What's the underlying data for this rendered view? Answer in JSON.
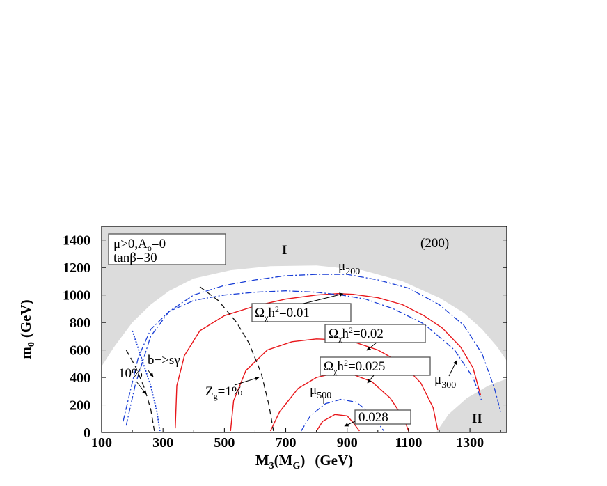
{
  "chart_data": {
    "type": "line",
    "xlabel": {
      "main": "M",
      "sub1": "3",
      "paren_open": "(M",
      "sub2": "G",
      "paren_close": ")",
      "unit": "(GeV)"
    },
    "ylabel": {
      "main": "m",
      "sub": "0",
      "unit": "(GeV)"
    },
    "xlim": [
      100,
      1420
    ],
    "ylim": [
      0,
      1500
    ],
    "x_ticks": [
      100,
      300,
      500,
      700,
      900,
      1100,
      1300
    ],
    "y_ticks": [
      0,
      200,
      400,
      600,
      800,
      1000,
      1200,
      1400
    ],
    "grid": false,
    "colors": {
      "relic": "#e8161a",
      "mu": "#1a3fd6",
      "zg": "#111111",
      "bsg": "#1a3fd6",
      "excluded": "#dcdcdc"
    },
    "excluded_regions": [
      {
        "name": "I",
        "boundary": [
          [
            100,
            480
          ],
          [
            140,
            620
          ],
          [
            200,
            800
          ],
          [
            260,
            930
          ],
          [
            320,
            1030
          ],
          [
            400,
            1120
          ],
          [
            520,
            1180
          ],
          [
            650,
            1210
          ],
          [
            800,
            1215
          ],
          [
            950,
            1180
          ],
          [
            1080,
            1100
          ],
          [
            1200,
            980
          ],
          [
            1280,
            870
          ],
          [
            1340,
            750
          ],
          [
            1390,
            620
          ],
          [
            1420,
            520
          ]
        ]
      },
      {
        "name": "II",
        "boundary": [
          [
            1190,
            0
          ],
          [
            1230,
            130
          ],
          [
            1290,
            250
          ],
          [
            1360,
            340
          ],
          [
            1420,
            390
          ]
        ]
      }
    ],
    "series": [
      {
        "name": "Ωχh²=0.01",
        "kind": "relic",
        "x": [
          340,
          345,
          370,
          420,
          500,
          600,
          700,
          800,
          870,
          920,
          1000,
          1080,
          1150,
          1210,
          1270,
          1310,
          1335
        ],
        "y": [
          30,
          340,
          560,
          740,
          850,
          920,
          970,
          1000,
          1010,
          1005,
          980,
          930,
          850,
          760,
          620,
          470,
          270
        ]
      },
      {
        "name": "Ωχh²=0.02",
        "kind": "relic",
        "x": [
          520,
          530,
          570,
          640,
          720,
          800,
          860,
          920,
          1000,
          1080,
          1140,
          1180,
          1195
        ],
        "y": [
          10,
          230,
          450,
          600,
          660,
          680,
          675,
          660,
          600,
          500,
          360,
          180,
          20
        ]
      },
      {
        "name": "Ωχh²=0.025",
        "kind": "relic",
        "x": [
          650,
          680,
          740,
          800,
          860,
          920,
          980,
          1040,
          1085,
          1100
        ],
        "y": [
          10,
          150,
          320,
          400,
          430,
          420,
          370,
          250,
          100,
          10
        ]
      },
      {
        "name": "0.028",
        "kind": "relic",
        "x": [
          800,
          820,
          860,
          900,
          920,
          940
        ],
        "y": [
          10,
          80,
          130,
          120,
          70,
          10
        ]
      },
      {
        "name": "μ200",
        "kind": "mu",
        "x": [
          180,
          210,
          260,
          320,
          400,
          500,
          600,
          700,
          800,
          900,
          1000,
          1100,
          1200,
          1280,
          1340,
          1380,
          1400
        ],
        "y": [
          50,
          350,
          700,
          880,
          1000,
          1070,
          1110,
          1140,
          1150,
          1150,
          1110,
          1050,
          930,
          780,
          570,
          320,
          150
        ]
      },
      {
        "name": "μ300",
        "kind": "mu",
        "x": [
          170,
          190,
          220,
          260,
          320,
          400,
          500,
          600,
          700,
          800,
          880,
          960,
          1050,
          1150,
          1250,
          1310,
          1340
        ],
        "y": [
          80,
          270,
          550,
          750,
          880,
          960,
          1000,
          1020,
          1030,
          1020,
          1000,
          970,
          900,
          790,
          600,
          400,
          220
        ]
      },
      {
        "name": "μ500",
        "kind": "mu",
        "x": [
          750,
          780,
          830,
          880,
          930,
          980,
          1010,
          1020
        ],
        "y": [
          10,
          120,
          210,
          240,
          220,
          130,
          40,
          10
        ]
      },
      {
        "name": "Zg=1%",
        "kind": "zg",
        "x": [
          420,
          480,
          540,
          580,
          620,
          645,
          660
        ],
        "y": [
          1060,
          960,
          800,
          650,
          430,
          200,
          10
        ]
      },
      {
        "name": "10%",
        "kind": "zg",
        "x": [
          180,
          210,
          240,
          260,
          272
        ],
        "y": [
          600,
          480,
          320,
          170,
          10
        ]
      },
      {
        "name": "b->sγ",
        "kind": "bsg",
        "x": [
          200,
          230,
          260,
          280,
          290
        ],
        "y": [
          740,
          540,
          340,
          150,
          10
        ]
      }
    ],
    "annotations": [
      {
        "key": "sign",
        "text": "μ>0,A₀=0"
      },
      {
        "key": "tb",
        "text": "tanβ=30"
      },
      {
        "key": "model",
        "text": "(200)"
      },
      {
        "key": "regI",
        "text": "I"
      },
      {
        "key": "regII",
        "text": "II"
      }
    ],
    "labels": {
      "sign_mu": "μ>0,A",
      "sign_sub": "o",
      "sign_rest": "=0",
      "tanb": "tanβ=30",
      "model": "(200)",
      "region_I": "I",
      "region_II": "II",
      "mu200_mu": "μ",
      "mu200_sub": "200",
      "mu300_mu": "μ",
      "mu300_sub": "300",
      "mu500_mu": "μ",
      "mu500_sub": "500",
      "omega_sym": "Ω",
      "omega_sub": "χ",
      "h": "h",
      "sup2": "2",
      "om001_val": "=0.01",
      "om002_val": "=0.02",
      "om0025_val": "=0.025",
      "om0028": "0.028",
      "bsg": "b−>sγ",
      "ten_pct": "10%",
      "zg_main": "Z",
      "zg_sub": "g",
      "zg_rest": "=1%"
    }
  }
}
